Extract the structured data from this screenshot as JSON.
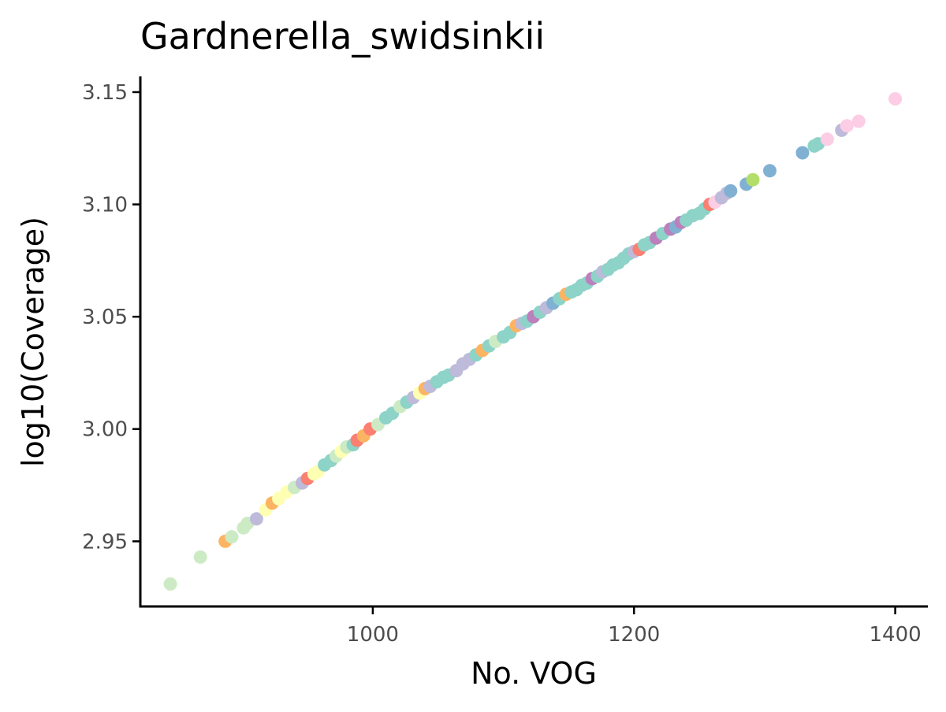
{
  "chart_data": {
    "type": "scatter",
    "title": "Gardnerella_swidsinkii",
    "xlabel": "No. VOG",
    "ylabel": "log10(Coverage)",
    "xlim": [
      822,
      1425
    ],
    "ylim": [
      2.921,
      3.157
    ],
    "xticks": [
      1000,
      1200,
      1400
    ],
    "xtick_labels": [
      "1000",
      "1200",
      "1400"
    ],
    "yticks": [
      2.95,
      3.0,
      3.05,
      3.1,
      3.15
    ],
    "ytick_labels": [
      "2.95",
      "3.00",
      "3.05",
      "3.10",
      "3.15"
    ],
    "grid": false,
    "legend": "none",
    "palette": [
      "#8dd3c7",
      "#ffffb3",
      "#bebada",
      "#fb8072",
      "#80b1d3",
      "#fdb462",
      "#b3de69",
      "#fccde5",
      "#bc80bd",
      "#ccebc5"
    ],
    "points": [
      [
        845,
        2.931,
        "#ccebc5"
      ],
      [
        868,
        2.943,
        "#ccebc5"
      ],
      [
        887,
        2.95,
        "#fdb462"
      ],
      [
        892,
        2.952,
        "#ccebc5"
      ],
      [
        901,
        2.956,
        "#ccebc5"
      ],
      [
        904,
        2.958,
        "#ccebc5"
      ],
      [
        911,
        2.96,
        "#bebada"
      ],
      [
        918,
        2.964,
        "#ffffb3"
      ],
      [
        923,
        2.967,
        "#fdb462"
      ],
      [
        928,
        2.969,
        "#ffffb3"
      ],
      [
        934,
        2.972,
        "#ffffb3"
      ],
      [
        940,
        2.974,
        "#ccebc5"
      ],
      [
        946,
        2.976,
        "#bebada"
      ],
      [
        950,
        2.978,
        "#fb8072"
      ],
      [
        955,
        2.98,
        "#ffffb3"
      ],
      [
        958,
        2.981,
        "#ffffb3"
      ],
      [
        963,
        2.984,
        "#8dd3c7"
      ],
      [
        968,
        2.986,
        "#8dd3c7"
      ],
      [
        972,
        2.988,
        "#ccebc5"
      ],
      [
        976,
        2.99,
        "#ffffb3"
      ],
      [
        980,
        2.992,
        "#ccebc5"
      ],
      [
        985,
        2.993,
        "#8dd3c7"
      ],
      [
        988,
        2.995,
        "#fb8072"
      ],
      [
        993,
        2.997,
        "#fdb462"
      ],
      [
        998,
        3.0,
        "#fb8072"
      ],
      [
        1004,
        3.002,
        "#ccebc5"
      ],
      [
        1010,
        3.005,
        "#8dd3c7"
      ],
      [
        1015,
        3.007,
        "#8dd3c7"
      ],
      [
        1021,
        3.01,
        "#ccebc5"
      ],
      [
        1026,
        3.012,
        "#8dd3c7"
      ],
      [
        1031,
        3.014,
        "#bebada"
      ],
      [
        1036,
        3.016,
        "#ffffb3"
      ],
      [
        1040,
        3.018,
        "#fdb462"
      ],
      [
        1044,
        3.019,
        "#bebada"
      ],
      [
        1049,
        3.021,
        "#8dd3c7"
      ],
      [
        1054,
        3.023,
        "#8dd3c7"
      ],
      [
        1058,
        3.024,
        "#8dd3c7"
      ],
      [
        1064,
        3.026,
        "#bebada"
      ],
      [
        1069,
        3.029,
        "#bebada"
      ],
      [
        1074,
        3.031,
        "#bebada"
      ],
      [
        1079,
        3.033,
        "#8dd3c7"
      ],
      [
        1084,
        3.035,
        "#fdb462"
      ],
      [
        1089,
        3.037,
        "#8dd3c7"
      ],
      [
        1094,
        3.039,
        "#ccebc5"
      ],
      [
        1100,
        3.041,
        "#8dd3c7"
      ],
      [
        1105,
        3.043,
        "#8dd3c7"
      ],
      [
        1110,
        3.046,
        "#fdb462"
      ],
      [
        1114,
        3.047,
        "#bebada"
      ],
      [
        1118,
        3.048,
        "#8dd3c7"
      ],
      [
        1123,
        3.05,
        "#bc80bd"
      ],
      [
        1128,
        3.052,
        "#8dd3c7"
      ],
      [
        1133,
        3.054,
        "#bebada"
      ],
      [
        1138,
        3.056,
        "#80b1d3"
      ],
      [
        1143,
        3.058,
        "#8dd3c7"
      ],
      [
        1148,
        3.06,
        "#fdb462"
      ],
      [
        1152,
        3.061,
        "#8dd3c7"
      ],
      [
        1156,
        3.062,
        "#8dd3c7"
      ],
      [
        1160,
        3.064,
        "#8dd3c7"
      ],
      [
        1164,
        3.065,
        "#8dd3c7"
      ],
      [
        1168,
        3.067,
        "#bc80bd"
      ],
      [
        1172,
        3.068,
        "#8dd3c7"
      ],
      [
        1176,
        3.07,
        "#bebada"
      ],
      [
        1180,
        3.071,
        "#8dd3c7"
      ],
      [
        1184,
        3.073,
        "#8dd3c7"
      ],
      [
        1188,
        3.074,
        "#8dd3c7"
      ],
      [
        1192,
        3.076,
        "#8dd3c7"
      ],
      [
        1196,
        3.078,
        "#8dd3c7"
      ],
      [
        1200,
        3.079,
        "#bebada"
      ],
      [
        1204,
        3.08,
        "#fb8072"
      ],
      [
        1208,
        3.082,
        "#8dd3c7"
      ],
      [
        1212,
        3.083,
        "#8dd3c7"
      ],
      [
        1217,
        3.085,
        "#bc80bd"
      ],
      [
        1222,
        3.087,
        "#8dd3c7"
      ],
      [
        1228,
        3.089,
        "#bc80bd"
      ],
      [
        1232,
        3.09,
        "#80b1d3"
      ],
      [
        1236,
        3.092,
        "#bc80bd"
      ],
      [
        1240,
        3.093,
        "#8dd3c7"
      ],
      [
        1245,
        3.095,
        "#8dd3c7"
      ],
      [
        1250,
        3.096,
        "#8dd3c7"
      ],
      [
        1254,
        3.098,
        "#8dd3c7"
      ],
      [
        1258,
        3.1,
        "#fb8072"
      ],
      [
        1262,
        3.101,
        "#fccde5"
      ],
      [
        1267,
        3.103,
        "#bebada"
      ],
      [
        1271,
        3.105,
        "#bebada"
      ],
      [
        1274,
        3.106,
        "#80b1d3"
      ],
      [
        1286,
        3.109,
        "#80b1d3"
      ],
      [
        1291,
        3.111,
        "#b3de69"
      ],
      [
        1304,
        3.115,
        "#80b1d3"
      ],
      [
        1329,
        3.123,
        "#80b1d3"
      ],
      [
        1338,
        3.126,
        "#8dd3c7"
      ],
      [
        1341,
        3.127,
        "#8dd3c7"
      ],
      [
        1348,
        3.129,
        "#fccde5"
      ],
      [
        1359,
        3.133,
        "#bebada"
      ],
      [
        1363,
        3.135,
        "#fccde5"
      ],
      [
        1372,
        3.137,
        "#fccde5"
      ],
      [
        1400,
        3.147,
        "#fccde5"
      ]
    ]
  }
}
